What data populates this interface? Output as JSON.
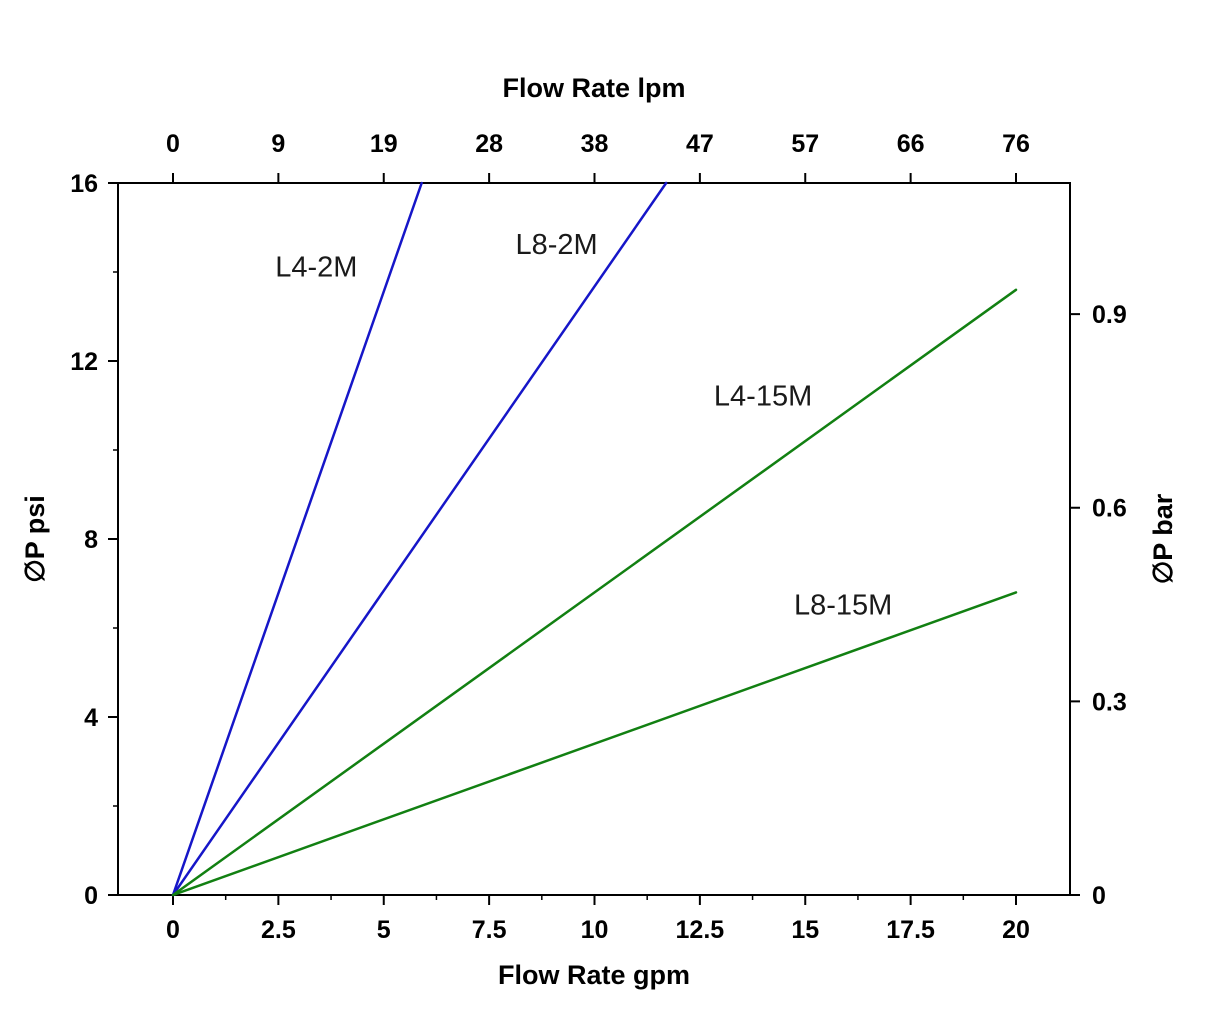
{
  "chart_data": {
    "type": "line",
    "title": "",
    "xlabel": "Flow Rate gpm",
    "x2label": "Flow Rate lpm",
    "ylabel": "∅P psi",
    "y2label": "∅P bar",
    "xlim": [
      0,
      20
    ],
    "ylim": [
      0,
      16
    ],
    "x_ticks_gpm": [
      "0",
      "2.5",
      "5",
      "7.5",
      "10",
      "12.5",
      "15",
      "17.5",
      "20"
    ],
    "x_ticks_gpm_values": [
      0,
      2.5,
      5,
      7.5,
      10,
      12.5,
      15,
      17.5,
      20
    ],
    "x2_ticks_lpm": [
      "0",
      "9",
      "19",
      "28",
      "38",
      "47",
      "57",
      "66",
      "76"
    ],
    "y_ticks_psi": [
      "0",
      "4",
      "8",
      "12",
      "16"
    ],
    "y_ticks_psi_values": [
      0,
      4,
      8,
      12,
      16
    ],
    "y2_ticks_bar": [
      "0",
      "0.3",
      "0.6",
      "0.9"
    ],
    "y2_ticks_bar_values": [
      0,
      0.3,
      0.6,
      0.9
    ],
    "psi_per_bar": 14.5038,
    "grid": false,
    "legend": "inline-labels",
    "series": [
      {
        "name": "L4-2M",
        "color": "#1616c8",
        "points": [
          [
            0,
            0
          ],
          [
            5.9,
            16
          ]
        ]
      },
      {
        "name": "L8-2M",
        "color": "#1616c8",
        "points": [
          [
            0,
            0
          ],
          [
            11.7,
            16
          ]
        ]
      },
      {
        "name": "L4-15M",
        "color": "#128012",
        "points": [
          [
            0,
            0
          ],
          [
            20,
            13.6
          ]
        ]
      },
      {
        "name": "L8-15M",
        "color": "#128012",
        "points": [
          [
            0,
            0
          ],
          [
            20,
            6.8
          ]
        ]
      }
    ],
    "annotations": [
      {
        "text": "L4-2M",
        "x": 3.4,
        "y": 13.9
      },
      {
        "text": "L8-2M",
        "x": 9.1,
        "y": 14.4
      },
      {
        "text": "L4-15M",
        "x": 14.0,
        "y": 11.0
      },
      {
        "text": "L8-15M",
        "x": 15.9,
        "y": 6.3
      }
    ]
  }
}
